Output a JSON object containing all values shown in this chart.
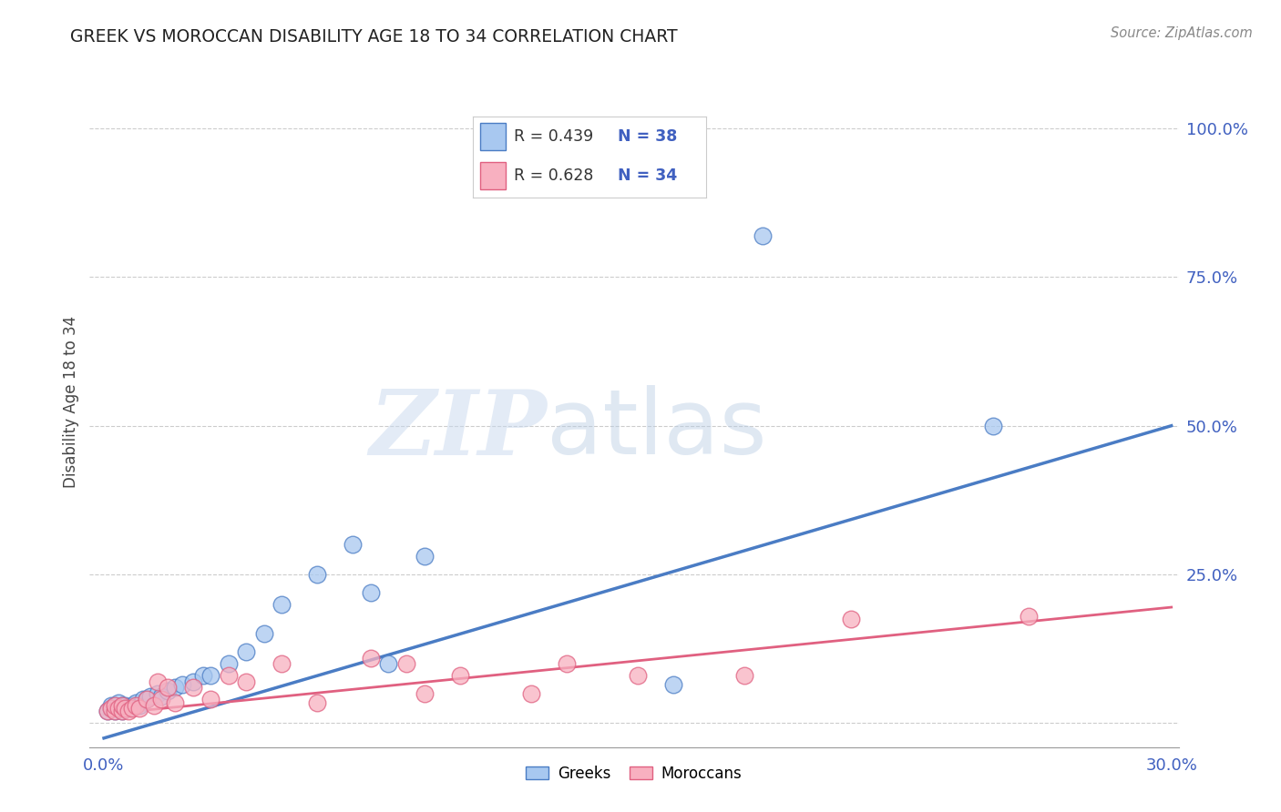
{
  "title": "GREEK VS MOROCCAN DISABILITY AGE 18 TO 34 CORRELATION CHART",
  "source": "Source: ZipAtlas.com",
  "ylabel": "Disability Age 18 to 34",
  "xlim": [
    -0.004,
    0.302
  ],
  "ylim": [
    -0.04,
    1.12
  ],
  "xticks": [
    0.0,
    0.05,
    0.1,
    0.15,
    0.2,
    0.25,
    0.3
  ],
  "xtick_labels": [
    "0.0%",
    "",
    "",
    "",
    "",
    "",
    "30.0%"
  ],
  "yticks_right": [
    0.0,
    0.25,
    0.5,
    0.75,
    1.0
  ],
  "ytick_labels_right": [
    "",
    "25.0%",
    "50.0%",
    "75.0%",
    "100.0%"
  ],
  "blue_color": "#a8c8f0",
  "pink_color": "#f8b0c0",
  "blue_line_color": "#4a7cc4",
  "pink_line_color": "#e06080",
  "watermark_zip": "ZIP",
  "watermark_atlas": "atlas",
  "background_color": "#ffffff",
  "greek_x": [
    0.001,
    0.002,
    0.002,
    0.003,
    0.003,
    0.004,
    0.004,
    0.005,
    0.005,
    0.006,
    0.006,
    0.007,
    0.008,
    0.009,
    0.01,
    0.011,
    0.012,
    0.013,
    0.015,
    0.016,
    0.018,
    0.02,
    0.022,
    0.025,
    0.028,
    0.03,
    0.035,
    0.04,
    0.045,
    0.05,
    0.06,
    0.07,
    0.08,
    0.09,
    0.075,
    0.16,
    0.185,
    0.25
  ],
  "greek_y": [
    0.02,
    0.025,
    0.03,
    0.02,
    0.03,
    0.025,
    0.035,
    0.02,
    0.03,
    0.025,
    0.03,
    0.025,
    0.03,
    0.035,
    0.03,
    0.04,
    0.04,
    0.045,
    0.05,
    0.045,
    0.055,
    0.06,
    0.065,
    0.07,
    0.08,
    0.08,
    0.1,
    0.12,
    0.15,
    0.2,
    0.25,
    0.3,
    0.1,
    0.28,
    0.22,
    0.065,
    0.82,
    0.5
  ],
  "moroccan_x": [
    0.001,
    0.002,
    0.003,
    0.003,
    0.004,
    0.005,
    0.005,
    0.006,
    0.007,
    0.008,
    0.009,
    0.01,
    0.012,
    0.014,
    0.015,
    0.016,
    0.018,
    0.02,
    0.025,
    0.03,
    0.035,
    0.04,
    0.05,
    0.06,
    0.075,
    0.085,
    0.09,
    0.1,
    0.12,
    0.13,
    0.15,
    0.18,
    0.21,
    0.26
  ],
  "moroccan_y": [
    0.02,
    0.025,
    0.02,
    0.03,
    0.025,
    0.02,
    0.03,
    0.025,
    0.02,
    0.025,
    0.03,
    0.025,
    0.04,
    0.03,
    0.07,
    0.04,
    0.06,
    0.035,
    0.06,
    0.04,
    0.08,
    0.07,
    0.1,
    0.035,
    0.11,
    0.1,
    0.05,
    0.08,
    0.05,
    0.1,
    0.08,
    0.08,
    0.175,
    0.18
  ],
  "greek_trendline_x": [
    0.0,
    0.3
  ],
  "greek_trendline_y": [
    -0.025,
    0.5
  ],
  "moroccan_trendline_x": [
    0.0,
    0.3
  ],
  "moroccan_trendline_y": [
    0.015,
    0.195
  ]
}
